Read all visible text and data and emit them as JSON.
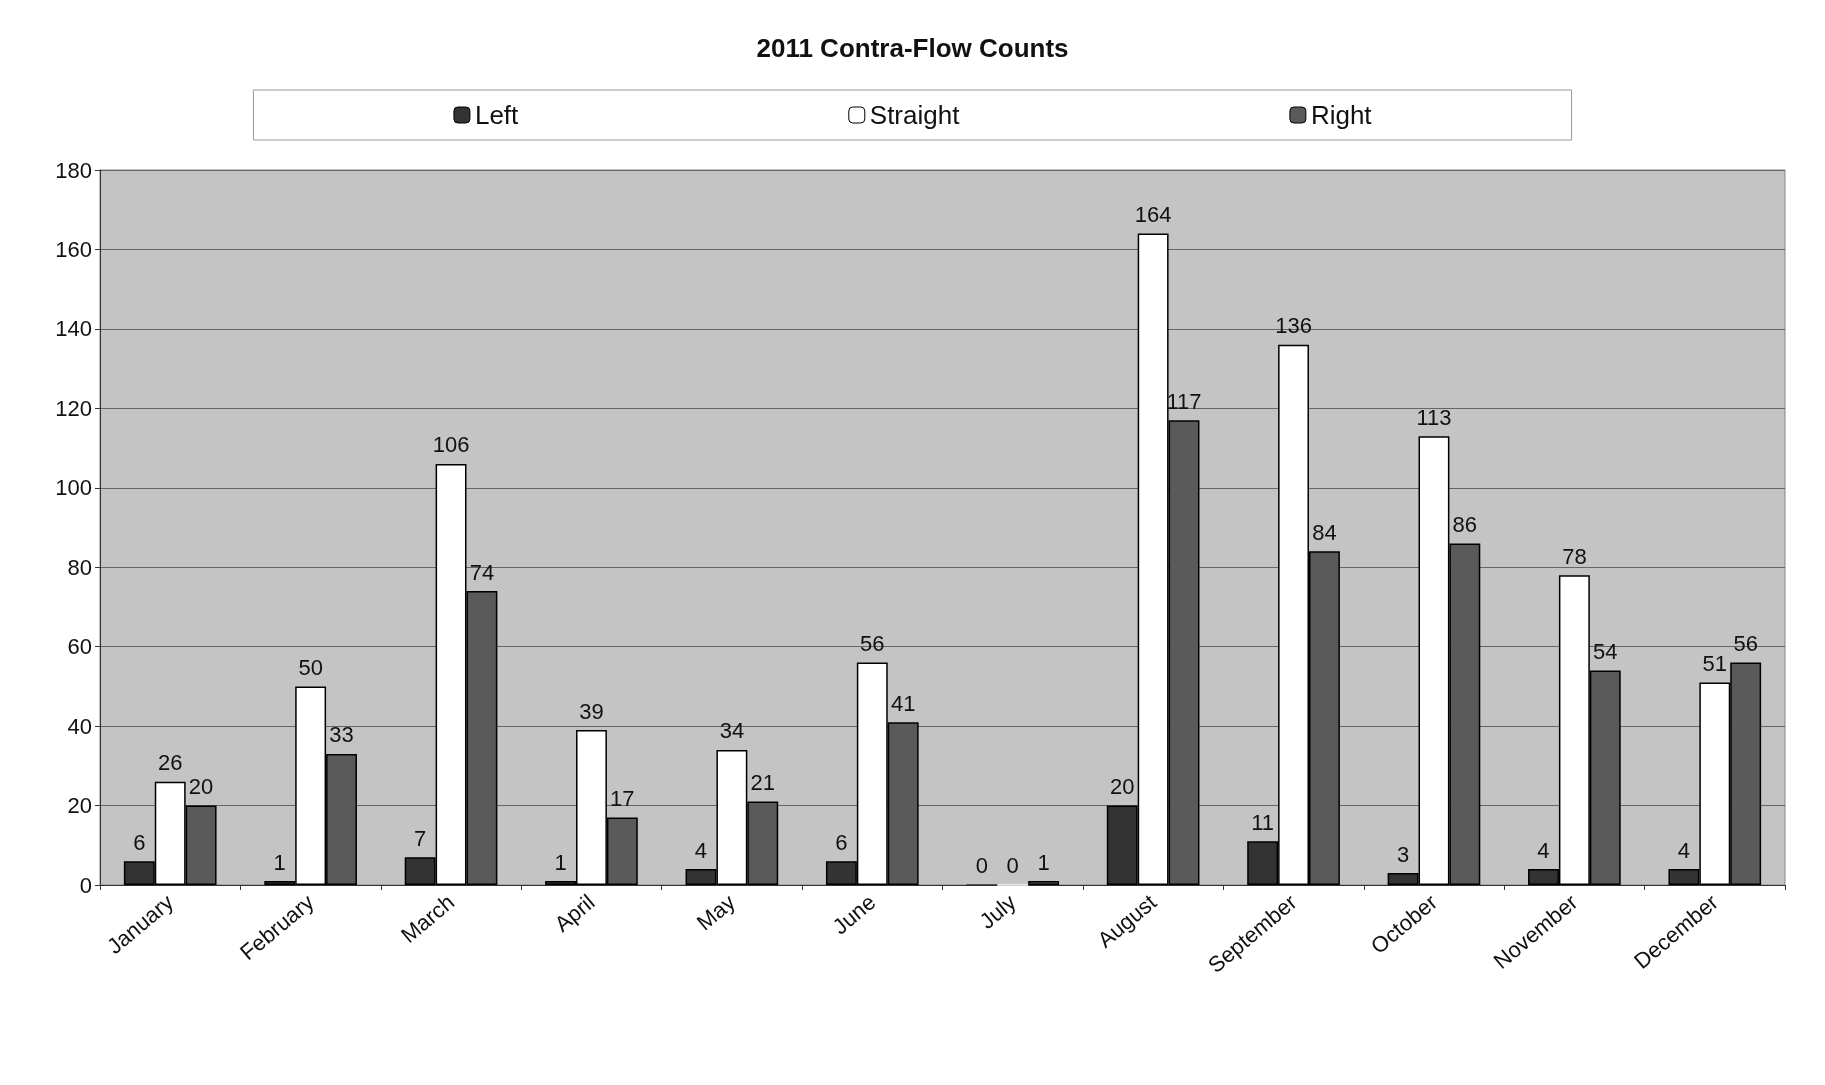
{
  "chart_data": {
    "type": "bar",
    "title": "2011 Contra-Flow Counts",
    "categories": [
      "January",
      "February",
      "March",
      "April",
      "May",
      "June",
      "July",
      "August",
      "September",
      "October",
      "November",
      "December"
    ],
    "series": [
      {
        "name": "Left",
        "color": "#333333",
        "values": [
          6,
          1,
          7,
          1,
          4,
          6,
          0,
          20,
          11,
          3,
          4,
          4
        ]
      },
      {
        "name": "Straight",
        "color": "#ffffff",
        "values": [
          26,
          50,
          106,
          39,
          34,
          56,
          0,
          164,
          136,
          113,
          78,
          51
        ]
      },
      {
        "name": "Right",
        "color": "#5a5a5a",
        "values": [
          20,
          33,
          74,
          17,
          21,
          41,
          1,
          117,
          84,
          86,
          54,
          56
        ]
      }
    ],
    "ylim": [
      0,
      180
    ],
    "yticks": [
      0,
      20,
      40,
      60,
      80,
      100,
      120,
      140,
      160,
      180
    ],
    "grid": "y",
    "legend": "top",
    "data_labels": true
  }
}
